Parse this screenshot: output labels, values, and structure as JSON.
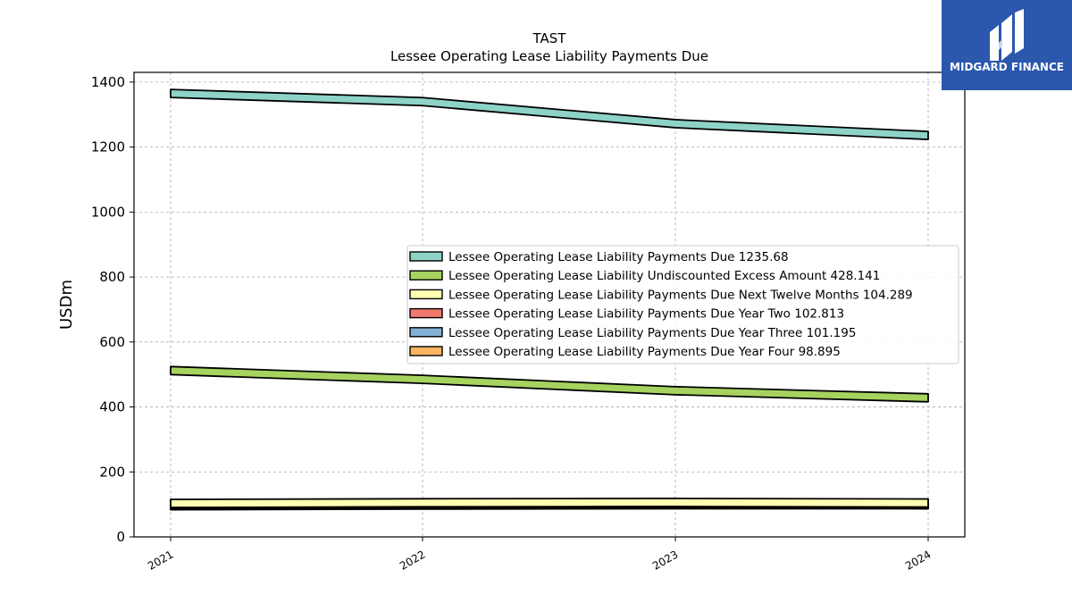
{
  "logo": {
    "text": "MIDGARD FINANCE",
    "bg_color": "#2b57ad"
  },
  "chart_data": {
    "type": "area",
    "title": "TAST",
    "subtitle": "Lessee Operating Lease Liability Payments Due",
    "ylabel": "USDm",
    "xlabel": "",
    "categories": [
      "2021",
      "2022",
      "2023",
      "2024"
    ],
    "ylim": [
      0,
      1430
    ],
    "yticks": [
      0,
      200,
      400,
      600,
      800,
      1000,
      1200,
      1400
    ],
    "grid": true,
    "legend_position": "center-right",
    "series": [
      {
        "name": "Lessee Operating Lease Liability Payments Due",
        "last_label": "1235.68",
        "color": "#8dd3c7",
        "values": [
          1365,
          1340,
          1272,
          1235.68
        ]
      },
      {
        "name": "Lessee Operating Lease Liability Undiscounted Excess Amount",
        "last_label": "428.141",
        "color": "#a6d35f",
        "values": [
          512,
          485,
          450,
          428.141
        ]
      },
      {
        "name": "Lessee Operating Lease Liability Payments Due Next Twelve Months",
        "last_label": "104.289",
        "color": "#ffffb3",
        "values": [
          103,
          105,
          106,
          104.289
        ]
      },
      {
        "name": "Lessee Operating Lease Liability Payments Due Year Two",
        "last_label": "102.813",
        "color": "#f07a6e",
        "values": [
          101,
          103,
          104,
          102.813
        ]
      },
      {
        "name": "Lessee Operating Lease Liability Payments Due Year Three",
        "last_label": "101.195",
        "color": "#80b1d3",
        "values": [
          99,
          101,
          102,
          101.195
        ]
      },
      {
        "name": "Lessee Operating Lease Liability Payments Due Year Four",
        "last_label": "98.895",
        "color": "#fdb462",
        "values": [
          96,
          98,
          99,
          98.895
        ]
      }
    ]
  }
}
